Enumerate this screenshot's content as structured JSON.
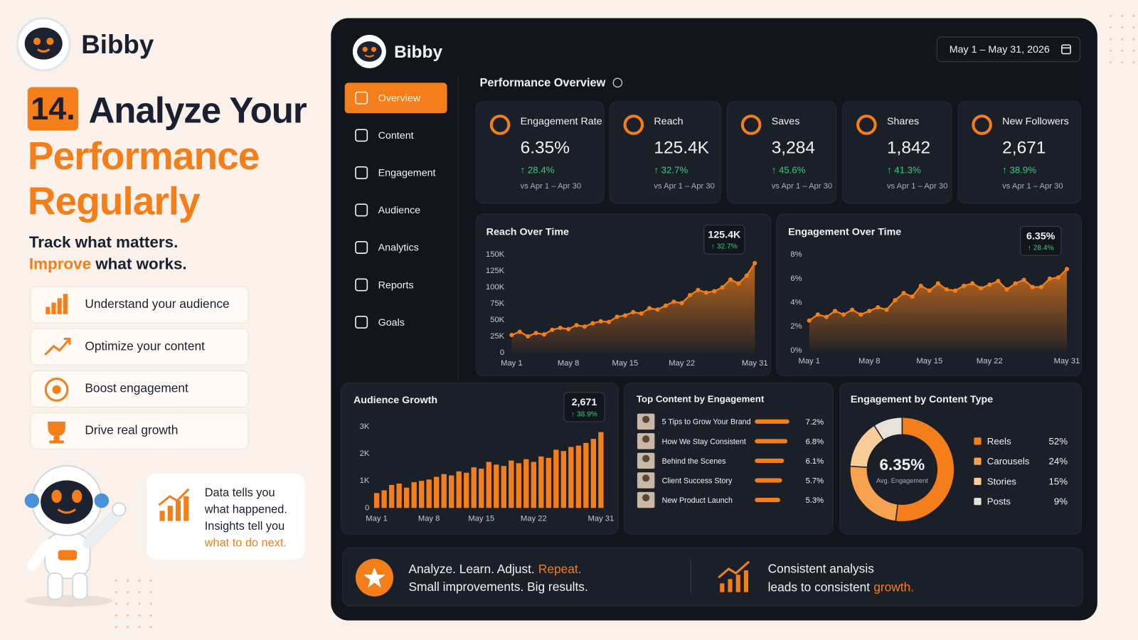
{
  "brand": "Bibby",
  "hero": {
    "number": "14.",
    "title_line1": "Analyze Your",
    "title_line2": "Performance",
    "title_line3": "Regularly",
    "tagline_line1": "Track what matters.",
    "tagline_accent": "Improve",
    "tagline_rest": "what works."
  },
  "features": [
    "Understand your audience",
    "Optimize your content",
    "Boost engagement",
    "Drive real growth"
  ],
  "quote": {
    "lines": [
      "Data tells you",
      "what happened.",
      "Insights tell you"
    ],
    "accent": "what to do next."
  },
  "dashboard": {
    "date_range": "May 1 – May 31, 2026",
    "nav": [
      {
        "label": "Overview",
        "active": true
      },
      {
        "label": "Content",
        "active": false
      },
      {
        "label": "Engagement",
        "active": false
      },
      {
        "label": "Audience",
        "active": false
      },
      {
        "label": "Analytics",
        "active": false
      },
      {
        "label": "Reports",
        "active": false
      },
      {
        "label": "Goals",
        "active": false
      }
    ],
    "section_title": "Performance Overview",
    "kpis": [
      {
        "label": "Engagement Rate",
        "value": "6.35%",
        "change": "↑ 28.4%",
        "comparison": "vs Apr 1 – Apr 30"
      },
      {
        "label": "Reach",
        "value": "125.4K",
        "change": "↑ 32.7%",
        "comparison": "vs Apr 1 – Apr 30"
      },
      {
        "label": "Saves",
        "value": "3,284",
        "change": "↑ 45.6%",
        "comparison": "vs Apr 1 – Apr 30"
      },
      {
        "label": "Shares",
        "value": "1,842",
        "change": "↑ 41.3%",
        "comparison": "vs Apr 1 – Apr 30"
      },
      {
        "label": "New Followers",
        "value": "2,671",
        "change": "↑ 38.9%",
        "comparison": "vs Apr 1 – Apr 30"
      }
    ]
  },
  "chart_data": [
    {
      "type": "area",
      "title": "Reach Over Time",
      "color": "#f47f1a",
      "callout_value": "125.4K",
      "callout_change": "↑ 32.7%",
      "x": [
        1,
        2,
        3,
        4,
        5,
        6,
        7,
        8,
        9,
        10,
        11,
        12,
        13,
        14,
        15,
        16,
        17,
        18,
        19,
        20,
        21,
        22,
        23,
        24,
        25,
        26,
        27,
        28,
        29,
        30,
        31
      ],
      "values": [
        27000,
        32000,
        25000,
        30000,
        28000,
        35000,
        38000,
        36000,
        42000,
        40000,
        45000,
        48000,
        47000,
        55000,
        57000,
        62000,
        60000,
        68000,
        66000,
        72000,
        78000,
        76000,
        88000,
        96000,
        92000,
        94000,
        100000,
        112000,
        106000,
        118000,
        137000
      ],
      "xlim": [
        1,
        31
      ],
      "xticks": [
        {
          "value": 1,
          "label": "May 1"
        },
        {
          "value": 8,
          "label": "May 8"
        },
        {
          "value": 15,
          "label": "May 15"
        },
        {
          "value": 22,
          "label": "May 22"
        },
        {
          "value": 31,
          "label": "May 31"
        }
      ],
      "ylim": [
        0,
        150000
      ],
      "yticks": [
        0,
        {
          "value": 25000,
          "label": "25K"
        },
        {
          "value": 50000,
          "label": "50K"
        },
        {
          "value": 75000,
          "label": "75K"
        },
        {
          "value": 100000,
          "label": "100K"
        },
        {
          "value": 125000,
          "label": "125K"
        },
        {
          "value": 150000,
          "label": "150K"
        }
      ]
    },
    {
      "type": "area",
      "title": "Engagement Over Time",
      "color": "#f47f1a",
      "callout_value": "6.35%",
      "callout_change": "↑ 28.4%",
      "x": [
        1,
        2,
        3,
        4,
        5,
        6,
        7,
        8,
        9,
        10,
        11,
        12,
        13,
        14,
        15,
        16,
        17,
        18,
        19,
        20,
        21,
        22,
        23,
        24,
        25,
        26,
        27,
        28,
        29,
        30,
        31
      ],
      "values": [
        2.5,
        3.0,
        2.8,
        3.3,
        3.0,
        3.4,
        3.0,
        3.3,
        3.6,
        3.4,
        4.2,
        4.8,
        4.5,
        5.4,
        5.0,
        5.6,
        5.1,
        5.0,
        5.4,
        5.6,
        5.2,
        5.5,
        5.8,
        5.1,
        5.6,
        5.9,
        5.3,
        5.3,
        6.0,
        6.1,
        6.8
      ],
      "xlim": [
        1,
        31
      ],
      "xticks": [
        {
          "value": 1,
          "label": "May 1"
        },
        {
          "value": 8,
          "label": "May 8"
        },
        {
          "value": 15,
          "label": "May 15"
        },
        {
          "value": 22,
          "label": "May 22"
        },
        {
          "value": 31,
          "label": "May 31"
        }
      ],
      "ylim": [
        0,
        8
      ],
      "yticks": [
        {
          "value": 0,
          "label": "0%"
        },
        {
          "value": 2,
          "label": "2%"
        },
        {
          "value": 4,
          "label": "4%"
        },
        {
          "value": 6,
          "label": "6%"
        },
        {
          "value": 8,
          "label": "8%"
        }
      ]
    },
    {
      "type": "bar",
      "title": "Audience Growth",
      "color": "#f47f1a",
      "callout_value": "2,671",
      "callout_change": "↑ 38.9%",
      "x": [
        1,
        2,
        3,
        4,
        5,
        6,
        7,
        8,
        9,
        10,
        11,
        12,
        13,
        14,
        15,
        16,
        17,
        18,
        19,
        20,
        21,
        22,
        23,
        24,
        25,
        26,
        27,
        28,
        29,
        30,
        31
      ],
      "values": [
        550,
        650,
        850,
        900,
        750,
        950,
        1000,
        1050,
        1150,
        1250,
        1200,
        1350,
        1300,
        1500,
        1450,
        1700,
        1600,
        1550,
        1750,
        1650,
        1800,
        1700,
        1900,
        1850,
        2150,
        2100,
        2250,
        2300,
        2400,
        2550,
        2800
      ],
      "xlim": [
        1,
        31
      ],
      "xticks": [
        {
          "value": 1,
          "label": "May 1"
        },
        {
          "value": 8,
          "label": "May 8"
        },
        {
          "value": 15,
          "label": "May 15"
        },
        {
          "value": 22,
          "label": "May 22"
        },
        {
          "value": 31,
          "label": "May 31"
        }
      ],
      "ylim": [
        0,
        3000
      ],
      "yticks": [
        0,
        {
          "value": 1000,
          "label": "1K"
        },
        {
          "value": 2000,
          "label": "2K"
        },
        {
          "value": 3000,
          "label": "3K"
        }
      ]
    },
    {
      "type": "hbar",
      "title": "Top Content by Engagement",
      "color": "#f47f1a",
      "categories": [
        "5 Tips to Grow Your Brand",
        "How We Stay Consistent",
        "Behind the Scenes",
        "Client Success Story",
        "New Product Launch"
      ],
      "values": [
        7.2,
        6.8,
        6.1,
        5.7,
        5.3
      ],
      "value_labels": [
        "7.2%",
        "6.8%",
        "6.1%",
        "5.7%",
        "5.3%"
      ]
    },
    {
      "type": "pie",
      "title": "Engagement by Content Type",
      "center_value": "6.35%",
      "center_label": "Avg. Engagement",
      "categories": [
        "Reels",
        "Carousels",
        "Stories",
        "Posts"
      ],
      "values": [
        52,
        24,
        15,
        9
      ],
      "value_labels": [
        "52%",
        "24%",
        "15%",
        "9%"
      ],
      "colors": [
        "#f47f1a",
        "#f7a24e",
        "#f8cd9a",
        "#e9e2da"
      ]
    }
  ],
  "footer": {
    "left_line1": "Analyze. Learn. Adjust.",
    "left_accent": "Repeat.",
    "left_line2": "Small improvements. Big results.",
    "right_line1": "Consistent analysis",
    "right_line2": "leads to consistent",
    "right_accent": "growth."
  }
}
